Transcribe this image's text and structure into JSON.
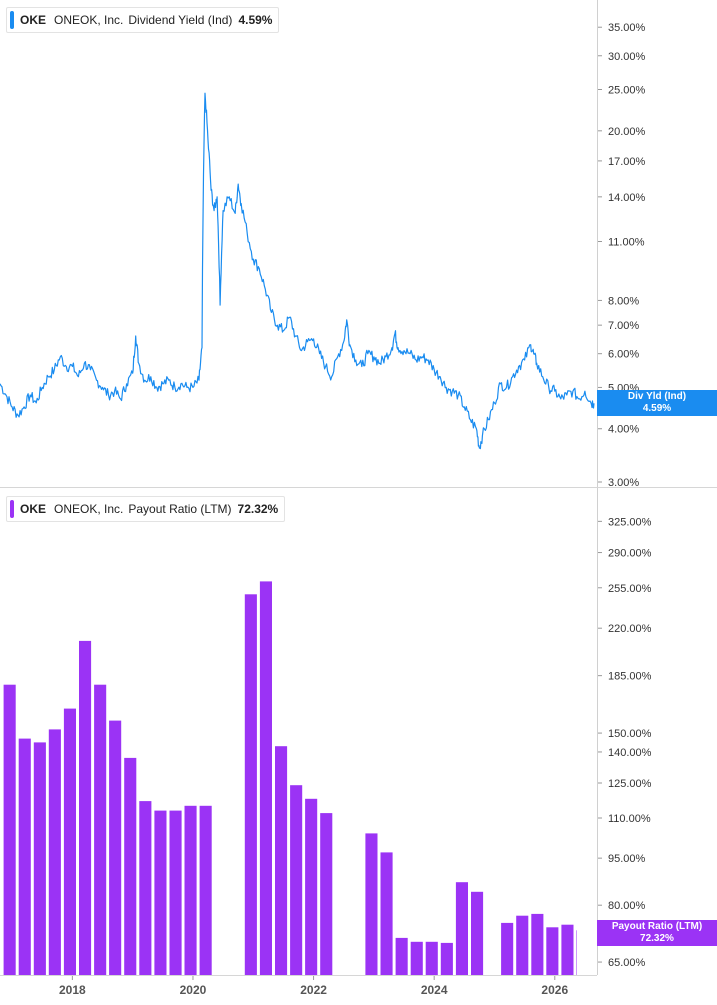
{
  "chart_data": [
    {
      "type": "line",
      "ticker": "OKE",
      "company": "ONEOK, Inc.",
      "metric": "Dividend Yield (Ind)",
      "current_value": "4.59%",
      "tag_title": "Div Yld (Ind)",
      "tag_value": "4.59%",
      "color": "#1a8cf0",
      "scale": "log",
      "ylim": [
        3.0,
        38.0
      ],
      "yticks": [
        "35.00%",
        "30.00%",
        "25.00%",
        "20.00%",
        "17.00%",
        "14.00%",
        "11.00%",
        "8.00%",
        "7.00%",
        "6.00%",
        "5.00%",
        "4.00%",
        "3.00%"
      ],
      "ytick_values": [
        35,
        30,
        25,
        20,
        17,
        14,
        11,
        8,
        7,
        6,
        5,
        4,
        3
      ],
      "x_start": 2016.8,
      "x_end": 2026.7,
      "series": [
        {
          "values": [
            [
              2016.8,
              5.1
            ],
            [
              2016.9,
              4.8
            ],
            [
              2017.0,
              4.5
            ],
            [
              2017.1,
              4.3
            ],
            [
              2017.2,
              4.5
            ],
            [
              2017.3,
              4.8
            ],
            [
              2017.4,
              4.6
            ],
            [
              2017.5,
              5.0
            ],
            [
              2017.6,
              5.3
            ],
            [
              2017.7,
              5.5
            ],
            [
              2017.8,
              5.9
            ],
            [
              2017.9,
              5.6
            ],
            [
              2018.0,
              5.6
            ],
            [
              2018.1,
              5.3
            ],
            [
              2018.2,
              5.7
            ],
            [
              2018.3,
              5.5
            ],
            [
              2018.4,
              5.2
            ],
            [
              2018.5,
              5.0
            ],
            [
              2018.6,
              4.8
            ],
            [
              2018.7,
              4.9
            ],
            [
              2018.8,
              4.7
            ],
            [
              2018.9,
              5.1
            ],
            [
              2019.0,
              5.4
            ],
            [
              2019.05,
              6.6
            ],
            [
              2019.1,
              5.7
            ],
            [
              2019.2,
              5.2
            ],
            [
              2019.3,
              5.3
            ],
            [
              2019.4,
              5.0
            ],
            [
              2019.5,
              5.1
            ],
            [
              2019.6,
              5.2
            ],
            [
              2019.7,
              5.0
            ],
            [
              2019.8,
              5.1
            ],
            [
              2019.9,
              5.0
            ],
            [
              2020.0,
              5.0
            ],
            [
              2020.1,
              5.2
            ],
            [
              2020.15,
              6.2
            ],
            [
              2020.2,
              24.5
            ],
            [
              2020.25,
              19.0
            ],
            [
              2020.3,
              14.5
            ],
            [
              2020.35,
              13.0
            ],
            [
              2020.4,
              14.0
            ],
            [
              2020.45,
              7.8
            ],
            [
              2020.5,
              13.0
            ],
            [
              2020.6,
              14.0
            ],
            [
              2020.7,
              12.8
            ],
            [
              2020.75,
              15.0
            ],
            [
              2020.8,
              13.5
            ],
            [
              2020.9,
              11.5
            ],
            [
              2021.0,
              10.0
            ],
            [
              2021.1,
              9.5
            ],
            [
              2021.2,
              8.5
            ],
            [
              2021.3,
              7.5
            ],
            [
              2021.4,
              7.0
            ],
            [
              2021.5,
              6.8
            ],
            [
              2021.6,
              7.3
            ],
            [
              2021.7,
              6.6
            ],
            [
              2021.8,
              6.1
            ],
            [
              2021.9,
              6.4
            ],
            [
              2022.0,
              6.5
            ],
            [
              2022.1,
              6.0
            ],
            [
              2022.2,
              5.6
            ],
            [
              2022.3,
              5.3
            ],
            [
              2022.4,
              5.9
            ],
            [
              2022.5,
              6.4
            ],
            [
              2022.55,
              7.2
            ],
            [
              2022.6,
              6.3
            ],
            [
              2022.7,
              5.8
            ],
            [
              2022.8,
              5.6
            ],
            [
              2022.9,
              6.0
            ],
            [
              2023.0,
              5.9
            ],
            [
              2023.1,
              5.7
            ],
            [
              2023.2,
              5.9
            ],
            [
              2023.3,
              6.2
            ],
            [
              2023.35,
              6.7
            ],
            [
              2023.4,
              6.2
            ],
            [
              2023.5,
              6.1
            ],
            [
              2023.6,
              6.0
            ],
            [
              2023.7,
              5.8
            ],
            [
              2023.8,
              5.9
            ],
            [
              2023.9,
              5.8
            ],
            [
              2024.0,
              5.5
            ],
            [
              2024.1,
              5.3
            ],
            [
              2024.2,
              5.0
            ],
            [
              2024.3,
              4.9
            ],
            [
              2024.4,
              4.8
            ],
            [
              2024.5,
              4.5
            ],
            [
              2024.6,
              4.2
            ],
            [
              2024.7,
              4.0
            ],
            [
              2024.75,
              3.6
            ],
            [
              2024.8,
              3.85
            ],
            [
              2024.9,
              4.2
            ],
            [
              2025.0,
              4.6
            ],
            [
              2025.1,
              5.1
            ],
            [
              2025.2,
              5.0
            ],
            [
              2025.3,
              5.3
            ],
            [
              2025.4,
              5.6
            ],
            [
              2025.5,
              5.8
            ],
            [
              2025.6,
              6.3
            ],
            [
              2025.65,
              6.0
            ],
            [
              2025.7,
              5.7
            ],
            [
              2025.8,
              5.3
            ],
            [
              2025.9,
              5.0
            ],
            [
              2026.0,
              4.9
            ],
            [
              2026.1,
              4.7
            ],
            [
              2026.2,
              4.8
            ],
            [
              2026.3,
              4.9
            ],
            [
              2026.4,
              4.7
            ],
            [
              2026.5,
              4.9
            ],
            [
              2026.6,
              4.6
            ],
            [
              2026.65,
              4.59
            ]
          ]
        }
      ]
    },
    {
      "type": "bar",
      "ticker": "OKE",
      "company": "ONEOK, Inc.",
      "metric": "Payout Ratio (LTM)",
      "current_value": "72.32%",
      "tag_title": "Payout Ratio (LTM)",
      "tag_value": "72.32%",
      "color": "#9b33f5",
      "scale": "log",
      "ylim": [
        62.0,
        345.0
      ],
      "yticks": [
        "325.00%",
        "290.00%",
        "255.00%",
        "220.00%",
        "185.00%",
        "150.00%",
        "140.00%",
        "125.00%",
        "110.00%",
        "95.00%",
        "80.00%",
        "65.00%"
      ],
      "ytick_values": [
        325,
        290,
        255,
        220,
        185,
        150,
        140,
        125,
        110,
        95,
        80,
        65
      ],
      "bar_width_years": 0.2,
      "bars": [
        [
          2016.96,
          179
        ],
        [
          2017.21,
          147
        ],
        [
          2017.46,
          145
        ],
        [
          2017.71,
          152
        ],
        [
          2017.96,
          164
        ],
        [
          2018.21,
          210
        ],
        [
          2018.46,
          179
        ],
        [
          2018.71,
          157
        ],
        [
          2018.96,
          137
        ],
        [
          2019.21,
          117
        ],
        [
          2019.46,
          113
        ],
        [
          2019.71,
          113
        ],
        [
          2019.96,
          115
        ],
        [
          2020.21,
          115
        ],
        [
          2020.96,
          249
        ],
        [
          2021.21,
          261
        ],
        [
          2021.46,
          143
        ],
        [
          2021.71,
          124
        ],
        [
          2021.96,
          118
        ],
        [
          2022.21,
          112
        ],
        [
          2022.96,
          104
        ],
        [
          2023.21,
          97
        ],
        [
          2023.46,
          71
        ],
        [
          2023.71,
          70
        ],
        [
          2023.96,
          70
        ],
        [
          2024.21,
          69.7
        ],
        [
          2024.46,
          87
        ],
        [
          2024.71,
          84
        ],
        [
          2025.21,
          75
        ],
        [
          2025.46,
          77
        ],
        [
          2025.71,
          77.5
        ],
        [
          2025.96,
          73.8
        ],
        [
          2026.21,
          74.5
        ],
        [
          2026.46,
          73
        ],
        [
          2026.71,
          72.32
        ]
      ]
    }
  ],
  "x_axis": {
    "labels": [
      "2018",
      "2020",
      "2022",
      "2024",
      "2026"
    ],
    "values": [
      2018,
      2020,
      2022,
      2024,
      2026
    ]
  }
}
